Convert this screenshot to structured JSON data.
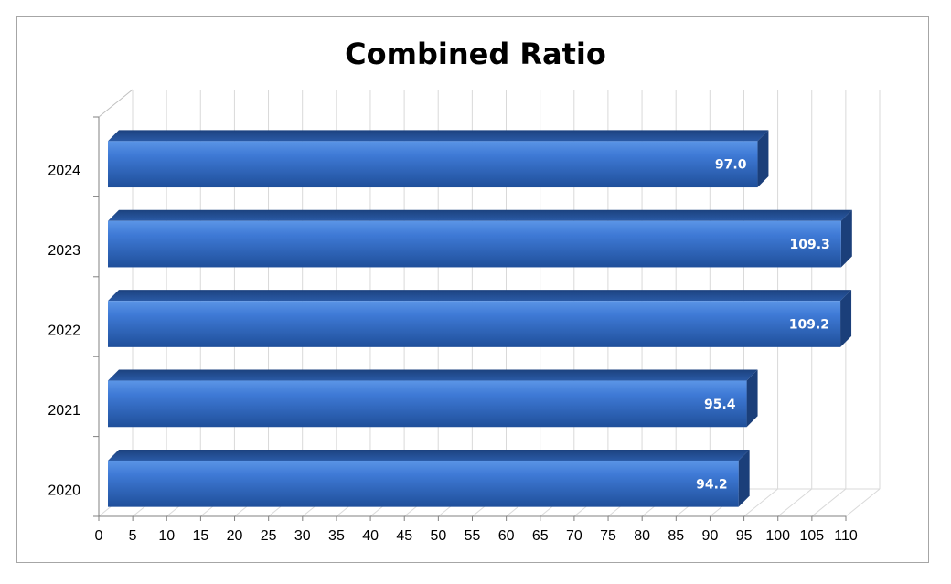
{
  "chart_data": {
    "type": "bar",
    "orientation": "horizontal",
    "title": "Combined Ratio",
    "categories": [
      "2020",
      "2021",
      "2022",
      "2023",
      "2024"
    ],
    "values": [
      94.2,
      95.4,
      109.2,
      109.3,
      97.0
    ],
    "value_labels": [
      "94.2",
      "95.4",
      "109.2",
      "109.3",
      "97.0"
    ],
    "xlim": [
      0,
      110
    ],
    "x_ticks": [
      "0",
      "5",
      "10",
      "15",
      "20",
      "25",
      "30",
      "35",
      "40",
      "45",
      "50",
      "55",
      "60",
      "65",
      "70",
      "75",
      "80",
      "85",
      "90",
      "95",
      "100",
      "105",
      "110"
    ],
    "grid": true,
    "style": "3d",
    "bar_color": "#2e6bc6"
  }
}
